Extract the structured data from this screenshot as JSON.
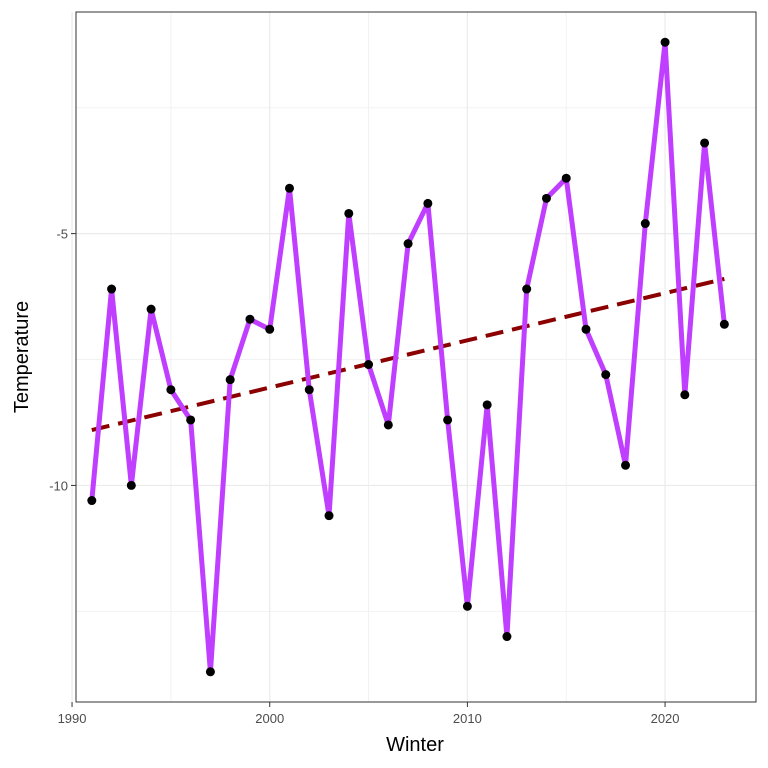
{
  "chart_data": {
    "type": "line",
    "title": "",
    "xlabel": "Winter",
    "ylabel": "Temperature",
    "xlim": [
      1990.2,
      2024.6
    ],
    "ylim": [
      -14.3,
      -0.6
    ],
    "x_ticks": [
      1990,
      2000,
      2010,
      2020
    ],
    "y_ticks": [
      -10,
      -5
    ],
    "y_minor_grid": [
      -12.5,
      -7.5,
      -2.5
    ],
    "x_minor_grid": [
      1995,
      2005,
      2015
    ],
    "grid": true,
    "legend": "none",
    "series": [
      {
        "color": "#bf3eff",
        "points": [
          {
            "x": 1991,
            "y": -10.3
          },
          {
            "x": 1992,
            "y": -6.1
          },
          {
            "x": 1993,
            "y": -10.0
          },
          {
            "x": 1994,
            "y": -6.5
          },
          {
            "x": 1995,
            "y": -8.1
          },
          {
            "x": 1996,
            "y": -8.7
          },
          {
            "x": 1997,
            "y": -13.7
          },
          {
            "x": 1998,
            "y": -7.9
          },
          {
            "x": 1999,
            "y": -6.7
          },
          {
            "x": 2000,
            "y": -6.9
          },
          {
            "x": 2001,
            "y": -4.1
          },
          {
            "x": 2002,
            "y": -8.1
          },
          {
            "x": 2003,
            "y": -10.6
          },
          {
            "x": 2004,
            "y": -4.6
          },
          {
            "x": 2005,
            "y": -7.6
          },
          {
            "x": 2006,
            "y": -8.8
          },
          {
            "x": 2007,
            "y": -5.2
          },
          {
            "x": 2008,
            "y": -4.4
          },
          {
            "x": 2009,
            "y": -8.7
          },
          {
            "x": 2010,
            "y": -12.4
          },
          {
            "x": 2011,
            "y": -8.4
          },
          {
            "x": 2012,
            "y": -13.0
          },
          {
            "x": 2013,
            "y": -6.1
          },
          {
            "x": 2014,
            "y": -4.3
          },
          {
            "x": 2015,
            "y": -3.9
          },
          {
            "x": 2016,
            "y": -6.9
          },
          {
            "x": 2017,
            "y": -7.8
          },
          {
            "x": 2018,
            "y": -9.6
          },
          {
            "x": 2019,
            "y": -4.8
          },
          {
            "x": 2020,
            "y": -1.2
          },
          {
            "x": 2021,
            "y": -8.2
          },
          {
            "x": 2022,
            "y": -3.2
          },
          {
            "x": 2023,
            "y": -6.8
          }
        ]
      }
    ],
    "trend_line": {
      "color": "#8b0000",
      "style": "dashed",
      "points": [
        {
          "x": 1991,
          "y": -8.9
        },
        {
          "x": 2023,
          "y": -5.9
        }
      ]
    }
  }
}
